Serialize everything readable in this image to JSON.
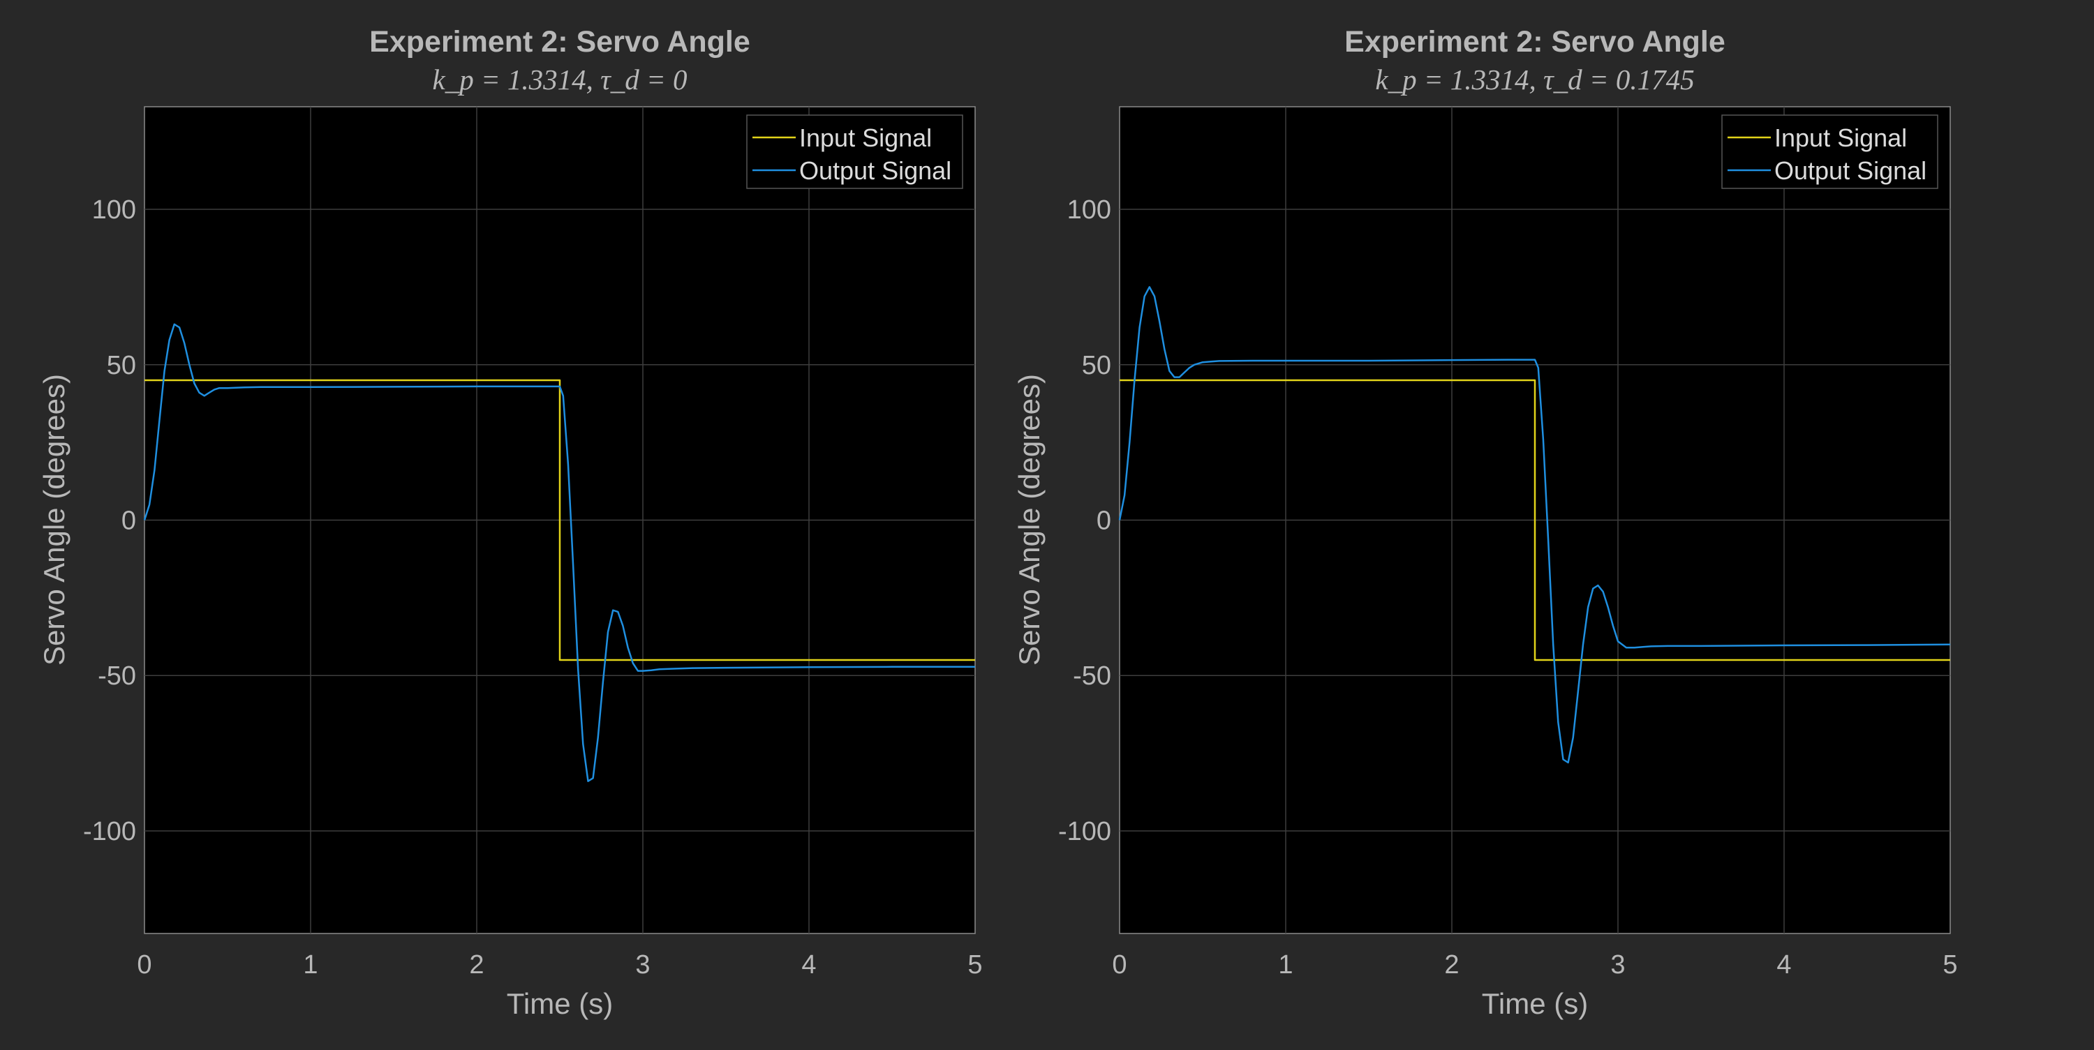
{
  "chart_data": [
    {
      "type": "line",
      "title": "Experiment 2: Servo Angle",
      "subtitle": "k_p = 1.3314, τ_d = 0",
      "xlabel": "Time (s)",
      "ylabel": "Servo Angle (degrees)",
      "xlim": [
        0,
        5
      ],
      "ylim": [
        -133,
        133
      ],
      "xticks": [
        0,
        1,
        2,
        3,
        4,
        5
      ],
      "yticks": [
        -100,
        -50,
        0,
        50,
        100
      ],
      "grid": true,
      "legend_position": "top-right",
      "series": [
        {
          "name": "Input Signal",
          "color": "#e2d31a",
          "x": [
            0,
            2.5,
            2.5,
            5
          ],
          "y": [
            45,
            45,
            -45,
            -45
          ]
        },
        {
          "name": "Output Signal",
          "color": "#1f8fe0",
          "x": [
            0,
            0.03,
            0.06,
            0.09,
            0.12,
            0.15,
            0.18,
            0.21,
            0.24,
            0.27,
            0.3,
            0.33,
            0.36,
            0.39,
            0.42,
            0.45,
            0.5,
            0.55,
            0.6,
            0.7,
            0.8,
            1.0,
            1.5,
            2.0,
            2.4,
            2.5,
            2.52,
            2.55,
            2.58,
            2.61,
            2.64,
            2.67,
            2.7,
            2.73,
            2.76,
            2.79,
            2.82,
            2.85,
            2.88,
            2.91,
            2.94,
            2.97,
            3.0,
            3.05,
            3.1,
            3.2,
            3.3,
            3.5,
            4.0,
            4.5,
            5.0
          ],
          "y": [
            0,
            5,
            16,
            32,
            48,
            58,
            63,
            62,
            57,
            50,
            44,
            41,
            40,
            41,
            42,
            42.5,
            42.5,
            42.6,
            42.7,
            42.8,
            42.8,
            42.8,
            42.9,
            43,
            43,
            43,
            40,
            18,
            -14,
            -48,
            -72,
            -84,
            -83,
            -70,
            -52,
            -36,
            -29,
            -29.5,
            -34,
            -41,
            -46,
            -48.5,
            -48.5,
            -48.3,
            -48,
            -47.8,
            -47.6,
            -47.5,
            -47.3,
            -47.2,
            -47.2
          ]
        }
      ]
    },
    {
      "type": "line",
      "title": "Experiment 2: Servo Angle",
      "subtitle": "k_p = 1.3314, τ_d = 0.1745",
      "xlabel": "Time (s)",
      "ylabel": "Servo Angle (degrees)",
      "xlim": [
        0,
        5
      ],
      "ylim": [
        -133,
        133
      ],
      "xticks": [
        0,
        1,
        2,
        3,
        4,
        5
      ],
      "yticks": [
        -100,
        -50,
        0,
        50,
        100
      ],
      "grid": true,
      "legend_position": "top-right",
      "series": [
        {
          "name": "Input Signal",
          "color": "#e2d31a",
          "x": [
            0,
            2.5,
            2.5,
            5
          ],
          "y": [
            45,
            45,
            -45,
            -45
          ]
        },
        {
          "name": "Output Signal",
          "color": "#1f8fe0",
          "x": [
            0,
            0.03,
            0.06,
            0.09,
            0.12,
            0.15,
            0.18,
            0.21,
            0.24,
            0.27,
            0.3,
            0.33,
            0.36,
            0.39,
            0.42,
            0.45,
            0.5,
            0.55,
            0.6,
            0.8,
            1.0,
            1.5,
            2.0,
            2.4,
            2.5,
            2.52,
            2.55,
            2.58,
            2.61,
            2.64,
            2.67,
            2.7,
            2.73,
            2.76,
            2.79,
            2.82,
            2.85,
            2.88,
            2.91,
            2.94,
            2.97,
            3.0,
            3.05,
            3.1,
            3.15,
            3.2,
            3.3,
            3.5,
            4.0,
            4.5,
            5.0
          ],
          "y": [
            0,
            8,
            25,
            45,
            62,
            72,
            75,
            72,
            64,
            55,
            48,
            46,
            46,
            47.5,
            49,
            50,
            50.8,
            51,
            51.2,
            51.3,
            51.3,
            51.3,
            51.5,
            51.6,
            51.6,
            49,
            26,
            -6,
            -40,
            -65,
            -77,
            -78,
            -70,
            -55,
            -40,
            -28,
            -22,
            -21,
            -23,
            -28,
            -34,
            -39,
            -41,
            -41,
            -40.8,
            -40.6,
            -40.5,
            -40.5,
            -40.3,
            -40.2,
            -40
          ]
        }
      ]
    }
  ]
}
